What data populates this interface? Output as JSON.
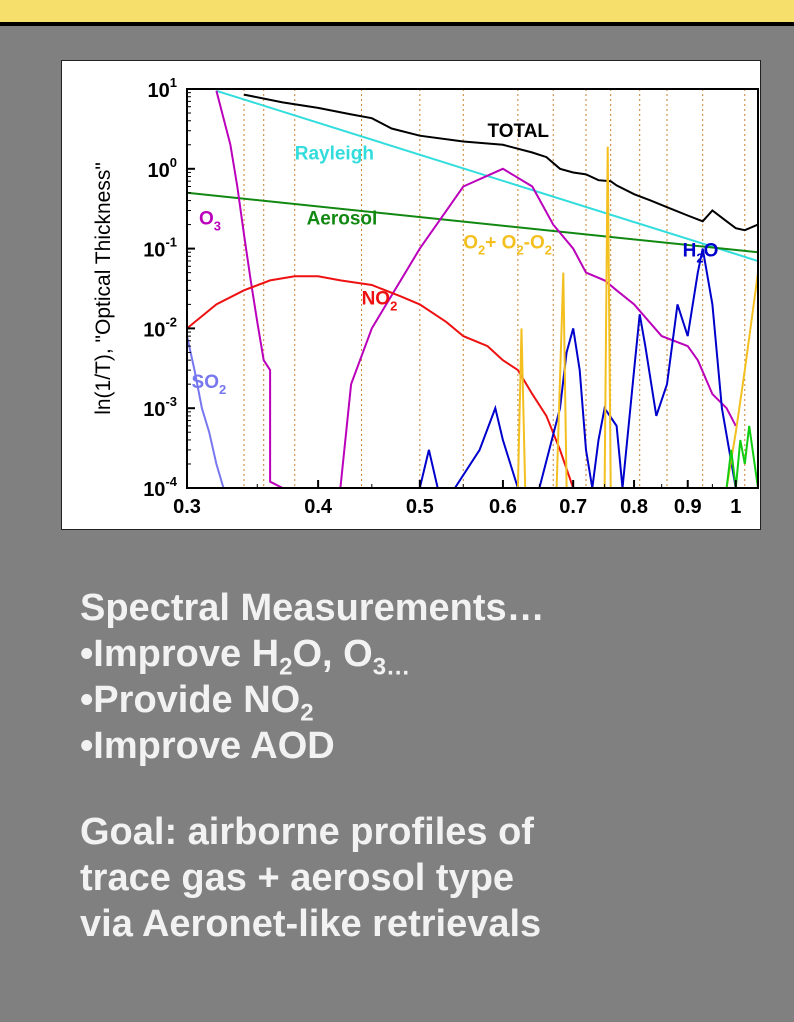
{
  "chart_data": {
    "type": "line",
    "ylabel": "ln(1/T), \"Optical Thickness\"",
    "xlabel": "",
    "x_scale": "log",
    "y_scale": "log",
    "xlim": [
      0.3,
      1.05
    ],
    "ylim": [
      0.0001,
      10
    ],
    "x_ticks": [
      "0.3",
      "0.4",
      "0.5",
      "0.6",
      "0.7",
      "0.8",
      "0.9",
      "1"
    ],
    "x_tick_values": [
      0.3,
      0.4,
      0.5,
      0.6,
      0.7,
      0.8,
      0.9,
      1.0
    ],
    "y_ticks": [
      {
        "v": 10,
        "base": "10",
        "exp": "1"
      },
      {
        "v": 1,
        "base": "10",
        "exp": "0"
      },
      {
        "v": 0.1,
        "base": "10",
        "exp": "-1"
      },
      {
        "v": 0.01,
        "base": "10",
        "exp": "-2"
      },
      {
        "v": 0.001,
        "base": "10",
        "exp": "-3"
      },
      {
        "v": 0.0001,
        "base": "10",
        "exp": "-4"
      }
    ],
    "vlines": [
      0.34,
      0.355,
      0.38,
      0.44,
      0.5,
      0.55,
      0.62,
      0.67,
      0.72,
      0.76,
      0.81,
      0.86,
      0.93,
      1.02
    ],
    "series": [
      {
        "key": "total",
        "color": "#000000",
        "x": [
          0.34,
          0.37,
          0.4,
          0.43,
          0.45,
          0.47,
          0.5,
          0.55,
          0.6,
          0.64,
          0.66,
          0.68,
          0.7,
          0.72,
          0.74,
          0.76,
          0.77,
          0.8,
          0.83,
          0.86,
          0.9,
          0.93,
          0.95,
          0.98,
          1.0,
          1.02,
          1.05
        ],
        "y": [
          8.5,
          6.8,
          5.8,
          4.8,
          4.3,
          3.2,
          2.6,
          2.2,
          2.0,
          1.6,
          1.4,
          1.0,
          0.9,
          0.85,
          0.72,
          0.7,
          0.62,
          0.48,
          0.4,
          0.33,
          0.26,
          0.22,
          0.3,
          0.22,
          0.18,
          0.17,
          0.2
        ]
      },
      {
        "key": "rayleigh",
        "color": "#33dddd",
        "x": [
          0.32,
          1.05
        ],
        "y": [
          9.5,
          0.07
        ]
      },
      {
        "key": "aerosol",
        "color": "#118811",
        "x": [
          0.3,
          1.05
        ],
        "y": [
          0.5,
          0.09
        ]
      },
      {
        "key": "o3",
        "color": "#bb00bb",
        "x": [
          0.32,
          0.33,
          0.335,
          0.34,
          0.345,
          0.35,
          0.355,
          0.36,
          0.36,
          0.37,
          0.38,
          0.4,
          0.42,
          0.43,
          0.45,
          0.5,
          0.55,
          0.6,
          0.64,
          0.67,
          0.7,
          0.72,
          0.75,
          0.77,
          0.8,
          0.85,
          0.9,
          0.92,
          0.95,
          0.98,
          1.0
        ],
        "y": [
          9.5,
          2.0,
          0.6,
          0.15,
          0.04,
          0.012,
          0.004,
          0.003,
          0.00012,
          0.0001,
          0.0001,
          0.0001,
          0.0001,
          0.002,
          0.01,
          0.1,
          0.6,
          1.0,
          0.6,
          0.2,
          0.1,
          0.05,
          0.04,
          0.03,
          0.02,
          0.008,
          0.006,
          0.004,
          0.0015,
          0.001,
          0.0006
        ]
      },
      {
        "key": "no2",
        "color": "#ee1111",
        "x": [
          0.3,
          0.32,
          0.34,
          0.36,
          0.38,
          0.4,
          0.42,
          0.45,
          0.48,
          0.5,
          0.53,
          0.55,
          0.58,
          0.6,
          0.62,
          0.64,
          0.66,
          0.68,
          0.7
        ],
        "y": [
          0.01,
          0.02,
          0.03,
          0.04,
          0.045,
          0.045,
          0.04,
          0.035,
          0.025,
          0.02,
          0.012,
          0.008,
          0.006,
          0.004,
          0.003,
          0.0015,
          0.0008,
          0.0003,
          0.0001
        ]
      },
      {
        "key": "so2",
        "color": "#7777ee",
        "x": [
          0.3,
          0.305,
          0.31,
          0.315,
          0.32,
          0.325
        ],
        "y": [
          0.008,
          0.003,
          0.001,
          0.0005,
          0.0002,
          0.0001
        ]
      },
      {
        "key": "h2o",
        "color": "#0000cc",
        "x": [
          0.5,
          0.51,
          0.52,
          0.54,
          0.57,
          0.59,
          0.6,
          0.62,
          0.65,
          0.68,
          0.69,
          0.7,
          0.71,
          0.72,
          0.73,
          0.74,
          0.75,
          0.77,
          0.78,
          0.8,
          0.81,
          0.82,
          0.84,
          0.86,
          0.88,
          0.9,
          0.92,
          0.93,
          0.95,
          0.97,
          1.0
        ],
        "y": [
          0.0001,
          0.0003,
          0.0001,
          0.0001,
          0.0003,
          0.001,
          0.0004,
          0.0001,
          0.0001,
          0.001,
          0.005,
          0.01,
          0.003,
          0.0003,
          0.0001,
          0.0004,
          0.001,
          0.0006,
          0.0001,
          0.003,
          0.015,
          0.006,
          0.0008,
          0.002,
          0.02,
          0.008,
          0.05,
          0.1,
          0.02,
          0.001,
          0.0001
        ]
      },
      {
        "key": "o2",
        "color": "#f3c020",
        "x": [
          0.62,
          0.625,
          0.63,
          0.64,
          0.675,
          0.685,
          0.69,
          0.7,
          0.75,
          0.755,
          0.76,
          0.77,
          0.9,
          0.93,
          0.95,
          0.98,
          1.0,
          1.02,
          1.05
        ],
        "y": [
          0.0001,
          0.01,
          0.0001,
          0.0001,
          0.0001,
          0.05,
          0.0001,
          0.0001,
          0.0001,
          1.9,
          0.0001,
          0.0001,
          0.0001,
          0.0001,
          0.0001,
          0.0001,
          0.0005,
          0.003,
          0.05
        ]
      },
      {
        "key": "green",
        "color": "#11cc11",
        "x": [
          0.98,
          0.99,
          1.0,
          1.01,
          1.02,
          1.03,
          1.05
        ],
        "y": [
          0.0001,
          0.0003,
          0.0001,
          0.0004,
          0.0002,
          0.0006,
          0.0001
        ]
      }
    ],
    "labels": [
      {
        "key": "total",
        "text": "TOTAL",
        "color": "#000000",
        "x": 0.58,
        "y": 2.5
      },
      {
        "key": "rayleigh",
        "text": "Rayleigh",
        "color": "#33dddd",
        "x": 0.38,
        "y": 1.3
      },
      {
        "key": "aerosol",
        "text": "Aerosol",
        "color": "#118811",
        "x": 0.39,
        "y": 0.2
      },
      {
        "key": "o3",
        "text": "O",
        "sub": "3",
        "color": "#bb00bb",
        "x": 0.308,
        "y": 0.2
      },
      {
        "key": "no2",
        "text": "NO",
        "sub": "2",
        "color": "#ee1111",
        "x": 0.44,
        "y": 0.02
      },
      {
        "key": "so2",
        "text": "SO",
        "sub": "2",
        "color": "#7777ee",
        "x": 0.303,
        "y": 0.0018
      },
      {
        "key": "h2o",
        "text": "H",
        "sub": "2",
        "tail": "O",
        "color": "#0000cc",
        "x": 0.89,
        "y": 0.08
      },
      {
        "key": "o2",
        "text": "O",
        "sub": "2",
        "tail": "+ O",
        "sub2": "2",
        "tail2": "-O",
        "sub3": "2",
        "color": "#f3c020",
        "x": 0.55,
        "y": 0.1
      }
    ]
  },
  "text": {
    "line1": "Spectral Measurements…",
    "line2a": "•Improve H",
    "line2b": "2",
    "line2c": "O, O",
    "line2d": "3…",
    "line3a": "•Provide NO",
    "line3b": "2",
    "line4": "•Improve AOD",
    "goal1": "Goal: airborne profiles of",
    "goal2": "trace gas + aerosol type",
    "goal3": "via Aeronet-like retrievals"
  }
}
